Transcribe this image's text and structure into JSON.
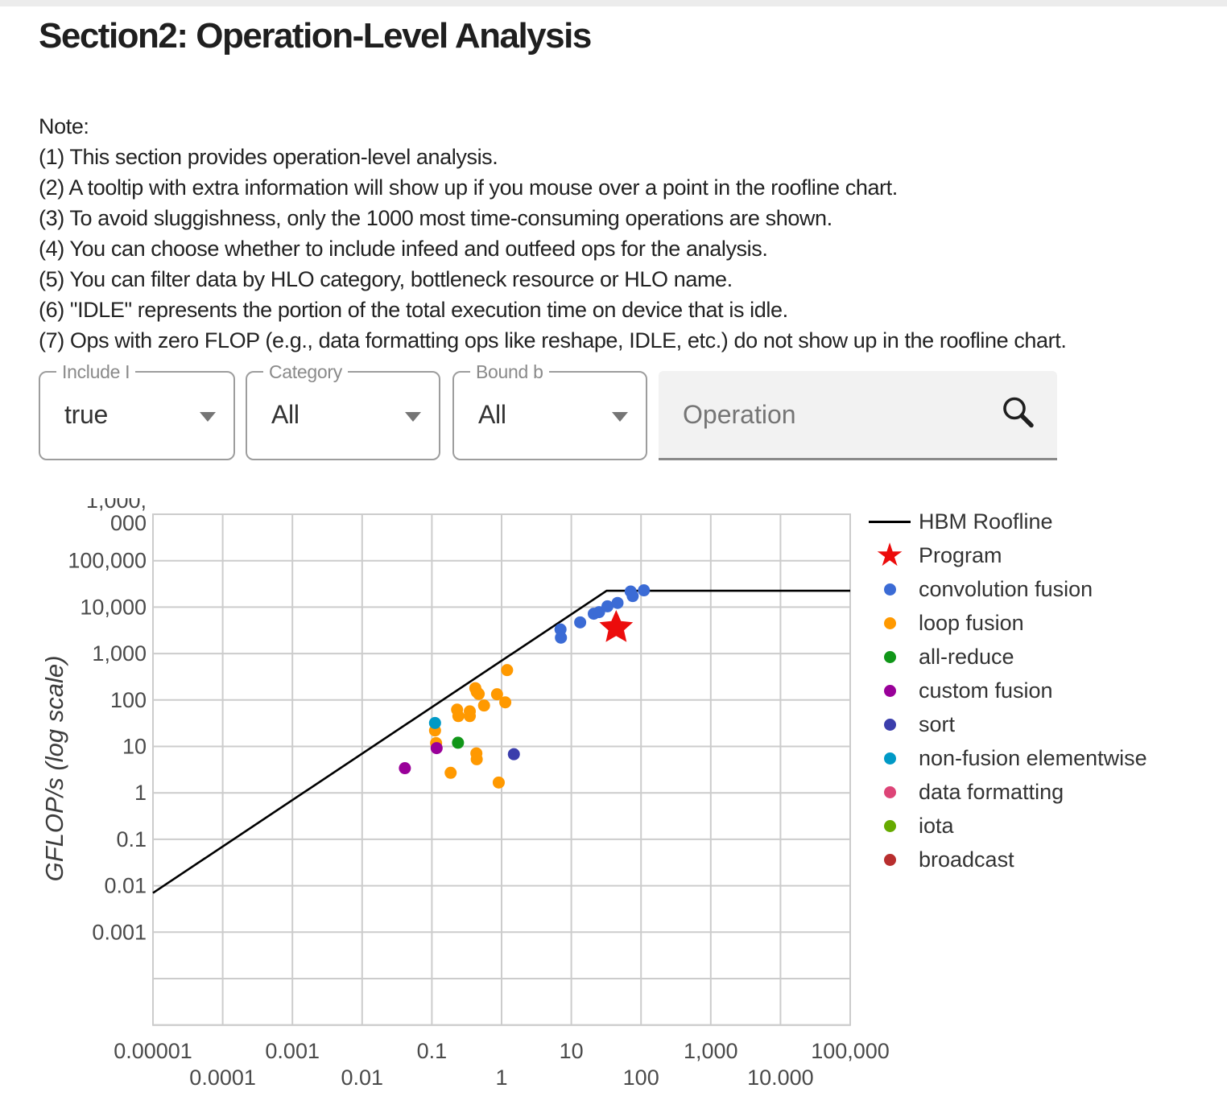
{
  "page": {
    "title": "Section2: Operation-Level Analysis"
  },
  "notes": {
    "heading": "Note:",
    "lines": [
      "(1) This section provides operation-level analysis.",
      "(2) A tooltip with extra information will show up if you mouse over a point in the roofline chart.",
      "(3) To avoid sluggishness, only the 1000 most time-consuming operations are shown.",
      "(4) You can choose whether to include infeed and outfeed ops for the analysis.",
      "(5) You can filter data by HLO category, bottleneck resource or HLO name.",
      "(6) \"IDLE\" represents the portion of the total execution time on device that is idle.",
      "(7) Ops with zero FLOP (e.g., data formatting ops like reshape, IDLE, etc.) do not show up in the roofline chart."
    ]
  },
  "filters": {
    "include_io": {
      "label": "Include I",
      "value": "true"
    },
    "category": {
      "label": "Category",
      "value": "All"
    },
    "bound_by": {
      "label": "Bound b",
      "value": "All"
    },
    "search": {
      "placeholder": "Operation"
    }
  },
  "chart_data": {
    "type": "scatter",
    "x_axis": {
      "scale": "log",
      "range": [
        1e-05,
        100000
      ],
      "ticks": [
        [
          1e-05,
          "0.00001"
        ],
        [
          0.0001,
          "0.0001"
        ],
        [
          0.001,
          "0.001"
        ],
        [
          0.01,
          "0.01"
        ],
        [
          0.1,
          "0.1"
        ],
        [
          1,
          "1"
        ],
        [
          10,
          "10"
        ],
        [
          100,
          "100"
        ],
        [
          1000,
          "1,000"
        ],
        [
          10000,
          "10.000"
        ],
        [
          100000,
          "100,000"
        ]
      ]
    },
    "y_axis": {
      "label": "GFLOP/s (log scale)",
      "scale": "log",
      "range": [
        1e-05,
        1000000
      ],
      "ticks": [
        [
          1000000,
          "1,000,000"
        ],
        [
          100000,
          "100,000"
        ],
        [
          10000,
          "10,000"
        ],
        [
          1000,
          "1,000"
        ],
        [
          100,
          "100"
        ],
        [
          10,
          "10"
        ],
        [
          1,
          "1"
        ],
        [
          0.1,
          "0.1"
        ],
        [
          0.01,
          "0.01"
        ],
        [
          0.001,
          "0.001"
        ]
      ],
      "top_tick_wrapped_lines": [
        "1,000,",
        "000"
      ]
    },
    "roofline": {
      "name": "HBM Roofline",
      "color": "#000000",
      "points": [
        [
          1e-05,
          0.007
        ],
        [
          32.14,
          22500
        ],
        [
          100000,
          22500
        ]
      ]
    },
    "program": {
      "name": "Program",
      "marker": "star",
      "color": "#ec0c0c",
      "point": [
        44,
        3600
      ]
    },
    "series": [
      {
        "name": "convolution fusion",
        "color": "#3b6bd5",
        "points": [
          [
            7,
            3300
          ],
          [
            7.1,
            2200
          ],
          [
            13.4,
            4700
          ],
          [
            21,
            7200
          ],
          [
            25,
            7800
          ],
          [
            33,
            10400
          ],
          [
            46,
            12300
          ],
          [
            71,
            21700
          ],
          [
            76,
            17300
          ],
          [
            110,
            23000
          ]
        ]
      },
      {
        "name": "loop fusion",
        "color": "#ff9900",
        "points": [
          [
            1.2,
            440
          ],
          [
            0.42,
            180
          ],
          [
            0.44,
            150
          ],
          [
            0.47,
            135
          ],
          [
            0.86,
            133
          ],
          [
            1.13,
            89
          ],
          [
            0.56,
            76
          ],
          [
            0.23,
            62
          ],
          [
            0.35,
            57
          ],
          [
            0.24,
            45
          ],
          [
            0.35,
            45
          ],
          [
            0.111,
            22
          ],
          [
            0.115,
            11.8
          ],
          [
            0.435,
            7.1
          ],
          [
            0.44,
            5.3
          ],
          [
            0.186,
            2.7
          ],
          [
            0.91,
            1.67
          ]
        ]
      },
      {
        "name": "all-reduce",
        "color": "#109618",
        "points": [
          [
            0.237,
            12
          ]
        ]
      },
      {
        "name": "custom fusion",
        "color": "#990099",
        "points": [
          [
            0.117,
            9.2
          ],
          [
            0.041,
            3.4
          ]
        ]
      },
      {
        "name": "sort",
        "color": "#3b3eac",
        "points": [
          [
            1.5,
            6.8
          ]
        ]
      },
      {
        "name": "non-fusion elementwise",
        "color": "#0099c6",
        "points": [
          [
            0.111,
            32
          ]
        ]
      },
      {
        "name": "data formatting",
        "color": "#dd4477",
        "points": []
      },
      {
        "name": "iota",
        "color": "#66aa00",
        "points": []
      },
      {
        "name": "broadcast",
        "color": "#b82e2e",
        "points": []
      }
    ],
    "grid": true,
    "legend_position": "right"
  }
}
